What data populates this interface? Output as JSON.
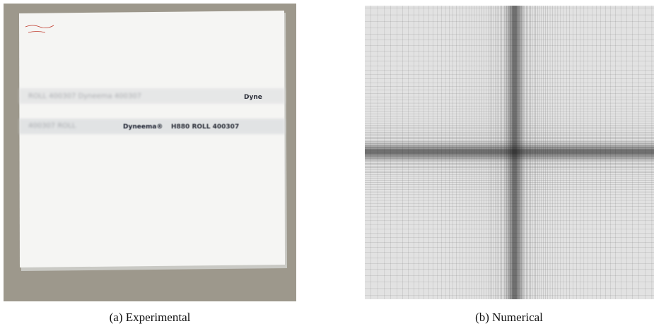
{
  "figure": {
    "panels": [
      {
        "caption": "(a) Experimental",
        "print_brand": "Dyneema®",
        "print_code": "H880 ROLL 400307",
        "print_edge": "Dyne"
      },
      {
        "caption": "(b) Numerical"
      }
    ]
  }
}
